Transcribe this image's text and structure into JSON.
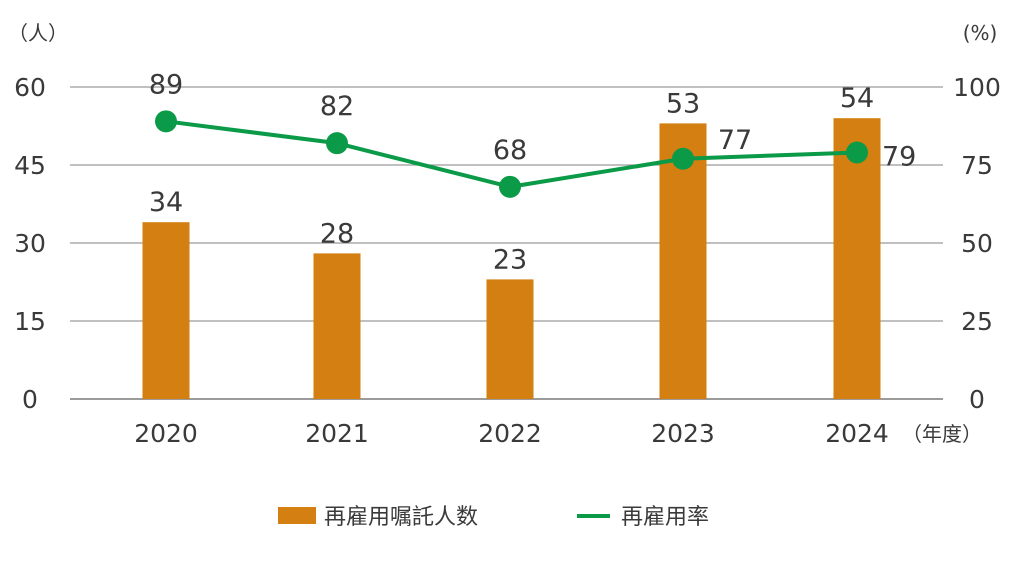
{
  "chart_data": {
    "type": "bar",
    "categories": [
      "2020",
      "2021",
      "2022",
      "2023",
      "2024"
    ],
    "x_unit": "（年度）",
    "left_axis": {
      "unit": "（人）",
      "ticks": [
        "0",
        "15",
        "30",
        "45",
        "60"
      ],
      "ylim": [
        0,
        60
      ]
    },
    "right_axis": {
      "unit": "(%)",
      "ticks": [
        "0",
        "25",
        "50",
        "75",
        "100"
      ],
      "ylim": [
        0,
        100
      ]
    },
    "grid": true,
    "legend_position": "bottom-center",
    "series": [
      {
        "name": "再雇用嘱託人数",
        "type": "bar",
        "axis": "left",
        "values": [
          34,
          28,
          23,
          53,
          54
        ],
        "labels": [
          "34",
          "28",
          "23",
          "53",
          "54"
        ],
        "color": "#d37f12"
      },
      {
        "name": "再雇用率",
        "type": "line",
        "axis": "right",
        "values": [
          89,
          82,
          68,
          77,
          79
        ],
        "labels": [
          "89",
          "82",
          "68",
          "77",
          "79"
        ],
        "color": "#0a9a48"
      }
    ],
    "highlight_color_bar": "#e08a1a",
    "highlight_color_line": "#0a9a48",
    "label_color": "#3a3a3a",
    "grid_color": "#9a9a9a"
  }
}
